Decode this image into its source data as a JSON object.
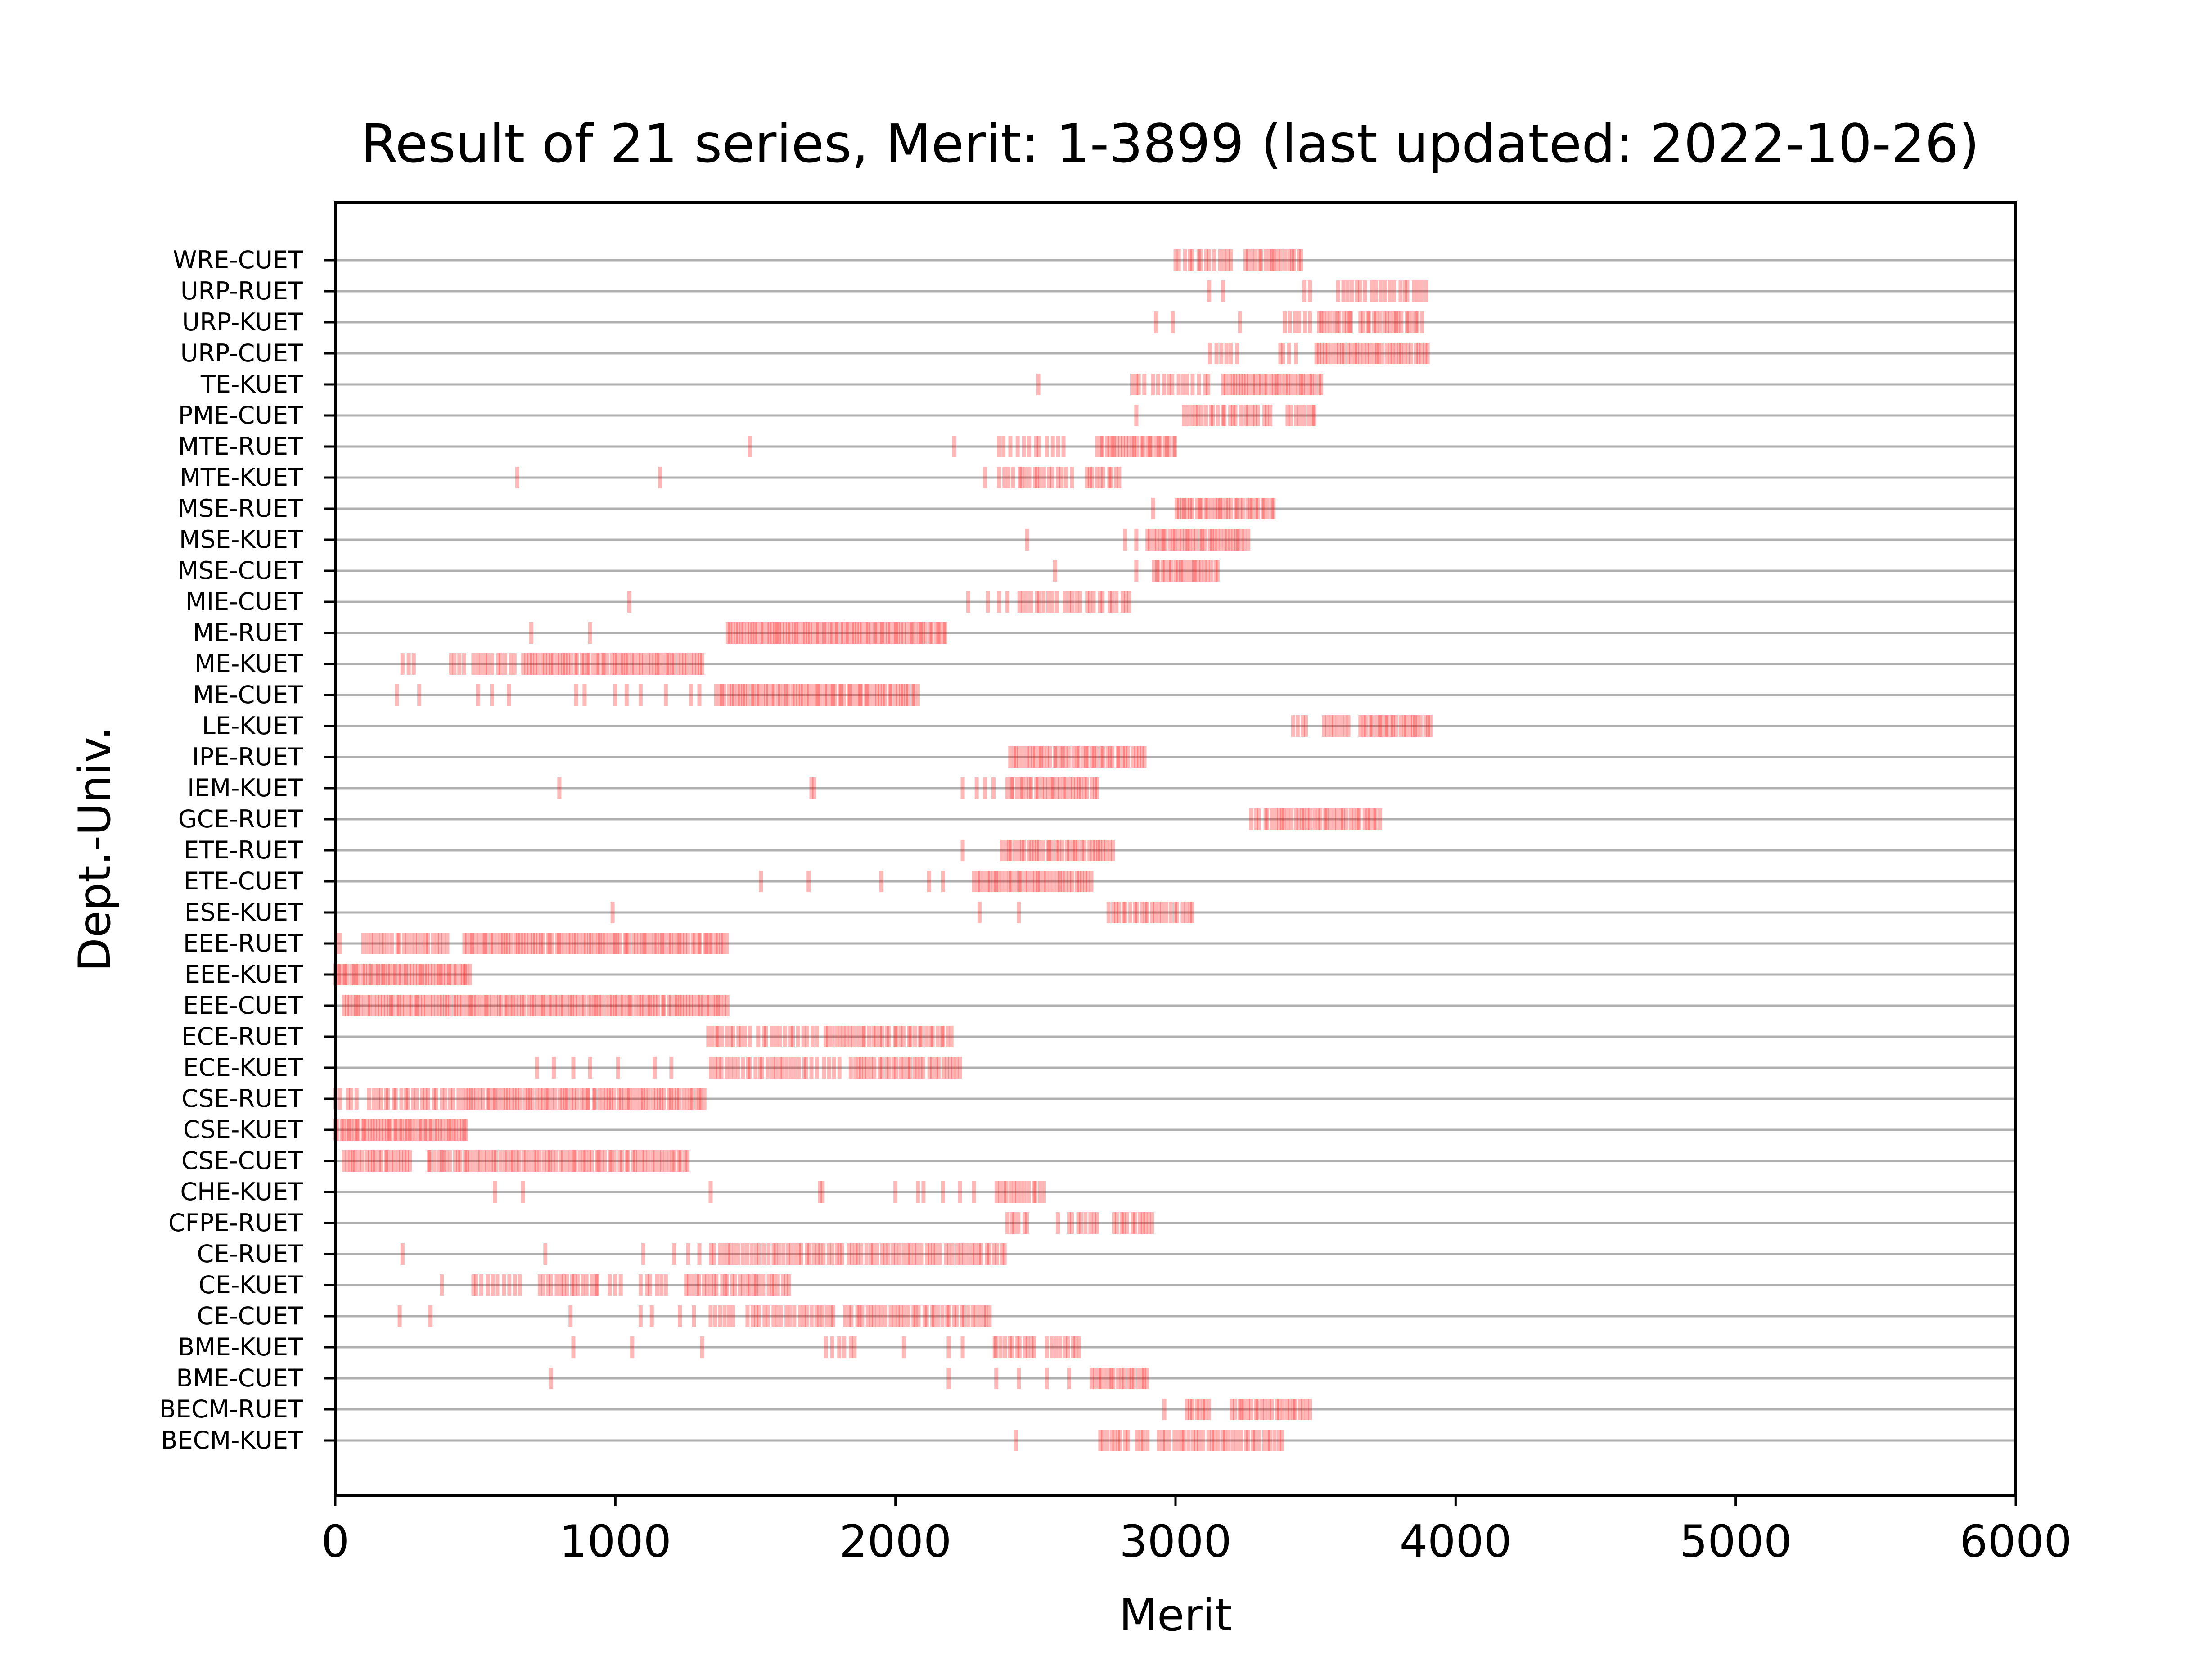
{
  "chart_data": {
    "type": "scatter",
    "title": "Result of 21 series, Merit: 1-3899 (last updated: 2022-10-26)",
    "xlabel": "Merit",
    "ylabel": "Dept.-Univ.",
    "xlim": [
      0,
      6000
    ],
    "xticks": [
      0,
      1000,
      2000,
      3000,
      4000,
      5000,
      6000
    ],
    "grid": "horizontal",
    "marker": "short vertical tick, red, semi-transparent",
    "color": "#ff0000",
    "categories": [
      "BECM-KUET",
      "BECM-RUET",
      "BME-CUET",
      "BME-KUET",
      "CE-CUET",
      "CE-KUET",
      "CE-RUET",
      "CFPE-RUET",
      "CHE-KUET",
      "CSE-CUET",
      "CSE-KUET",
      "CSE-RUET",
      "ECE-KUET",
      "ECE-RUET",
      "EEE-CUET",
      "EEE-KUET",
      "EEE-RUET",
      "ESE-KUET",
      "ETE-CUET",
      "ETE-RUET",
      "GCE-RUET",
      "IEM-KUET",
      "IPE-RUET",
      "LE-KUET",
      "ME-CUET",
      "ME-KUET",
      "ME-RUET",
      "MIE-CUET",
      "MSE-CUET",
      "MSE-KUET",
      "MSE-RUET",
      "MTE-KUET",
      "MTE-RUET",
      "PME-CUET",
      "TE-KUET",
      "URP-CUET",
      "URP-KUET",
      "URP-RUET",
      "WRE-CUET"
    ],
    "series": [
      {
        "category": "BECM-KUET",
        "segments": [
          [
            2730,
            2830,
            9
          ],
          [
            2860,
            2900,
            4
          ],
          [
            2940,
            3380,
            34
          ]
        ],
        "points": [
          2430
        ]
      },
      {
        "category": "BECM-RUET",
        "segments": [
          [
            3040,
            3120,
            8
          ],
          [
            3200,
            3480,
            24
          ]
        ],
        "points": [
          2960
        ]
      },
      {
        "category": "BME-CUET",
        "segments": [
          [
            2700,
            2900,
            18
          ]
        ],
        "points": [
          770,
          2190,
          2360,
          2440,
          2540,
          2620
        ]
      },
      {
        "category": "BME-KUET",
        "segments": [
          [
            1750,
            1860,
            6
          ],
          [
            2350,
            2500,
            12
          ],
          [
            2540,
            2660,
            9
          ]
        ],
        "points": [
          850,
          1060,
          1310,
          2030,
          2190,
          2240
        ]
      },
      {
        "category": "CE-CUET",
        "segments": [
          [
            1340,
            1420,
            6
          ],
          [
            1470,
            1640,
            12
          ],
          [
            1660,
            1780,
            10
          ],
          [
            1820,
            2340,
            40
          ]
        ],
        "points": [
          230,
          340,
          840,
          1090,
          1130,
          1230,
          1280
        ]
      },
      {
        "category": "CE-KUET",
        "segments": [
          [
            490,
            580,
            6
          ],
          [
            600,
            660,
            4
          ],
          [
            730,
            940,
            16
          ],
          [
            1000,
            1020,
            2
          ],
          [
            1090,
            1180,
            6
          ],
          [
            1250,
            1620,
            30
          ]
        ],
        "points": [
          380,
          980
        ]
      },
      {
        "category": "CE-RUET",
        "segments": [
          [
            1340,
            1590,
            18
          ],
          [
            1600,
            2390,
            60
          ]
        ],
        "points": [
          240,
          750,
          1100,
          1210,
          1260,
          1300
        ]
      },
      {
        "category": "CFPE-RUET",
        "segments": [
          [
            2400,
            2470,
            6
          ],
          [
            2620,
            2720,
            8
          ],
          [
            2780,
            2920,
            12
          ]
        ],
        "points": [
          2580
        ]
      },
      {
        "category": "CHE-KUET",
        "segments": [
          [
            2360,
            2530,
            14
          ]
        ],
        "points": [
          570,
          670,
          1340,
          1730,
          1740,
          2000,
          2080,
          2100,
          2170,
          2230,
          2280
        ]
      },
      {
        "category": "CSE-CUET",
        "segments": [
          [
            30,
            270,
            22
          ],
          [
            330,
            1260,
            80
          ]
        ],
        "points": []
      },
      {
        "category": "CSE-KUET",
        "segments": [
          [
            0,
            470,
            50
          ]
        ],
        "points": []
      },
      {
        "category": "CSE-RUET",
        "segments": [
          [
            0,
            80,
            5
          ],
          [
            120,
            420,
            22
          ],
          [
            440,
            1320,
            80
          ]
        ],
        "points": []
      },
      {
        "category": "ECE-KUET",
        "segments": [
          [
            1340,
            1700,
            26
          ],
          [
            1720,
            1800,
            5
          ],
          [
            1840,
            2230,
            32
          ]
        ],
        "points": [
          720,
          780,
          850,
          910,
          1010,
          1140,
          1200
        ]
      },
      {
        "category": "ECE-RUET",
        "segments": [
          [
            1330,
            1480,
            12
          ],
          [
            1510,
            1720,
            14
          ],
          [
            1750,
            2200,
            36
          ]
        ],
        "points": []
      },
      {
        "category": "EEE-CUET",
        "segments": [
          [
            30,
            1400,
            130
          ]
        ],
        "points": []
      },
      {
        "category": "EEE-KUET",
        "segments": [
          [
            0,
            480,
            52
          ]
        ],
        "points": []
      },
      {
        "category": "EEE-RUET",
        "segments": [
          [
            0,
            20,
            2
          ],
          [
            100,
            400,
            24
          ],
          [
            460,
            1400,
            90
          ]
        ],
        "points": []
      },
      {
        "category": "ESE-KUET",
        "segments": [
          [
            2760,
            3060,
            24
          ]
        ],
        "points": [
          990,
          2300,
          2440
        ]
      },
      {
        "category": "ETE-CUET",
        "segments": [
          [
            2280,
            2700,
            38
          ]
        ],
        "points": [
          1520,
          1690,
          1950,
          2120,
          2170
        ]
      },
      {
        "category": "ETE-RUET",
        "segments": [
          [
            2380,
            2780,
            36
          ]
        ],
        "points": [
          2240
        ]
      },
      {
        "category": "GCE-RUET",
        "segments": [
          [
            3270,
            3300,
            3
          ],
          [
            3320,
            3730,
            36
          ]
        ],
        "points": []
      },
      {
        "category": "IEM-KUET",
        "segments": [
          [
            2400,
            2720,
            30
          ]
        ],
        "points": [
          800,
          1700,
          1710,
          2240,
          2290,
          2320,
          2350
        ]
      },
      {
        "category": "IPE-RUET",
        "segments": [
          [
            2410,
            2890,
            44
          ]
        ],
        "points": []
      },
      {
        "category": "LE-KUET",
        "segments": [
          [
            3420,
            3470,
            4
          ],
          [
            3530,
            3620,
            8
          ],
          [
            3660,
            3910,
            24
          ]
        ],
        "points": []
      },
      {
        "category": "ME-CUET",
        "segments": [
          [
            1360,
            2080,
            70
          ]
        ],
        "points": [
          220,
          300,
          510,
          560,
          620,
          860,
          890,
          1000,
          1040,
          1090,
          1180,
          1270,
          1300
        ]
      },
      {
        "category": "ME-KUET",
        "segments": [
          [
            240,
            280,
            3
          ],
          [
            410,
            460,
            4
          ],
          [
            490,
            560,
            6
          ],
          [
            580,
            640,
            5
          ],
          [
            670,
            1310,
            60
          ]
        ],
        "points": []
      },
      {
        "category": "ME-RUET",
        "segments": [
          [
            1400,
            2180,
            80
          ]
        ],
        "points": [
          700,
          910
        ]
      },
      {
        "category": "MIE-CUET",
        "segments": [
          [
            2440,
            2580,
            10
          ],
          [
            2600,
            2840,
            16
          ]
        ],
        "points": [
          1050,
          2260,
          2330,
          2370,
          2400
        ]
      },
      {
        "category": "MSE-CUET",
        "segments": [
          [
            2920,
            3150,
            22
          ]
        ],
        "points": [
          2570,
          2860
        ]
      },
      {
        "category": "MSE-KUET",
        "segments": [
          [
            2900,
            3260,
            34
          ]
        ],
        "points": [
          2470,
          2820,
          2860
        ]
      },
      {
        "category": "MSE-RUET",
        "segments": [
          [
            3000,
            3350,
            34
          ]
        ],
        "points": [
          2920
        ]
      },
      {
        "category": "MTE-KUET",
        "segments": [
          [
            2370,
            2420,
            4
          ],
          [
            2440,
            2560,
            10
          ],
          [
            2580,
            2630,
            4
          ],
          [
            2680,
            2800,
            10
          ]
        ],
        "points": [
          650,
          1160,
          2320
        ]
      },
      {
        "category": "MTE-RUET",
        "segments": [
          [
            2370,
            2600,
            12
          ],
          [
            2720,
            3000,
            28
          ]
        ],
        "points": [
          1480,
          2210
        ]
      },
      {
        "category": "PME-CUET",
        "segments": [
          [
            3030,
            3340,
            24
          ],
          [
            3400,
            3500,
            8
          ]
        ],
        "points": [
          2860
        ]
      },
      {
        "category": "TE-KUET",
        "segments": [
          [
            2840,
            2890,
            4
          ],
          [
            2920,
            3120,
            12
          ],
          [
            3170,
            3520,
            34
          ]
        ],
        "points": [
          2510
        ]
      },
      {
        "category": "URP-CUET",
        "segments": [
          [
            3120,
            3220,
            6
          ],
          [
            3370,
            3430,
            4
          ],
          [
            3500,
            3900,
            36
          ]
        ],
        "points": []
      },
      {
        "category": "URP-KUET",
        "segments": [
          [
            3390,
            3480,
            6
          ],
          [
            3510,
            3630,
            12
          ],
          [
            3660,
            3880,
            20
          ]
        ],
        "points": [
          2930,
          2990,
          3230
        ]
      },
      {
        "category": "URP-RUET",
        "segments": [
          [
            3460,
            3480,
            2
          ],
          [
            3580,
            3900,
            20
          ]
        ],
        "points": [
          3120,
          3170
        ]
      },
      {
        "category": "WRE-CUET",
        "segments": [
          [
            3000,
            3200,
            14
          ],
          [
            3250,
            3450,
            18
          ]
        ],
        "points": []
      }
    ]
  }
}
